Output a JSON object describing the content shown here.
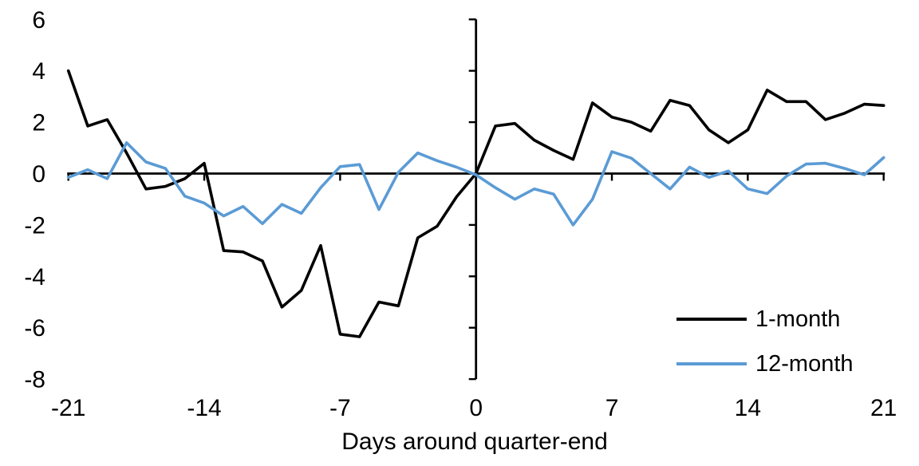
{
  "figure": {
    "background": "#ffffff",
    "text_color": "#000000",
    "axis_color": "#000000"
  },
  "legend": {
    "items": [
      {
        "label": "1-month",
        "color": "#000000"
      },
      {
        "label": "12-month",
        "color": "#5b9bd5"
      }
    ]
  },
  "chart_data": {
    "type": "line",
    "title": "",
    "xlabel": "Days around quarter-end",
    "ylabel": "",
    "xlim": [
      -21,
      21
    ],
    "ylim": [
      -8,
      6
    ],
    "x_ticks": [
      -21,
      -14,
      -7,
      0,
      7,
      14,
      21
    ],
    "y_ticks": [
      6,
      4,
      2,
      0,
      -2,
      -4,
      -6,
      -8
    ],
    "grid": false,
    "legend_position": "inside-lower-right",
    "x": [
      -21,
      -20,
      -19,
      -18,
      -17,
      -16,
      -15,
      -14,
      -13,
      -12,
      -11,
      -10,
      -9,
      -8,
      -7,
      -6,
      -5,
      -4,
      -3,
      -2,
      -1,
      0,
      1,
      2,
      3,
      4,
      5,
      6,
      7,
      8,
      9,
      10,
      11,
      12,
      13,
      14,
      15,
      16,
      17,
      18,
      19,
      20,
      21
    ],
    "series": [
      {
        "name": "1-month",
        "color": "#000000",
        "values": [
          4.0,
          1.85,
          2.1,
          0.8,
          -0.6,
          -0.5,
          -0.2,
          0.4,
          -3.0,
          -3.05,
          -3.4,
          -5.2,
          -4.55,
          -2.8,
          -6.25,
          -6.35,
          -5.0,
          -5.15,
          -2.5,
          -2.05,
          -0.9,
          0.0,
          1.85,
          1.95,
          1.3,
          0.9,
          0.55,
          2.75,
          2.2,
          2.0,
          1.65,
          2.85,
          2.65,
          1.7,
          1.2,
          1.7,
          3.25,
          2.8,
          2.8,
          2.1,
          2.35,
          2.7,
          2.65
        ]
      },
      {
        "name": "12-month",
        "color": "#5b9bd5",
        "values": [
          -0.15,
          0.15,
          -0.2,
          1.2,
          0.45,
          0.2,
          -0.88,
          -1.15,
          -1.65,
          -1.28,
          -1.95,
          -1.2,
          -1.55,
          -0.55,
          0.27,
          0.35,
          -1.4,
          0.05,
          0.8,
          0.5,
          0.25,
          -0.05,
          -0.55,
          -1.0,
          -0.6,
          -0.8,
          -2.0,
          -1.0,
          0.85,
          0.6,
          0.0,
          -0.6,
          0.25,
          -0.15,
          0.1,
          -0.6,
          -0.78,
          -0.1,
          0.37,
          0.4,
          0.2,
          -0.05,
          0.62
        ]
      }
    ]
  }
}
